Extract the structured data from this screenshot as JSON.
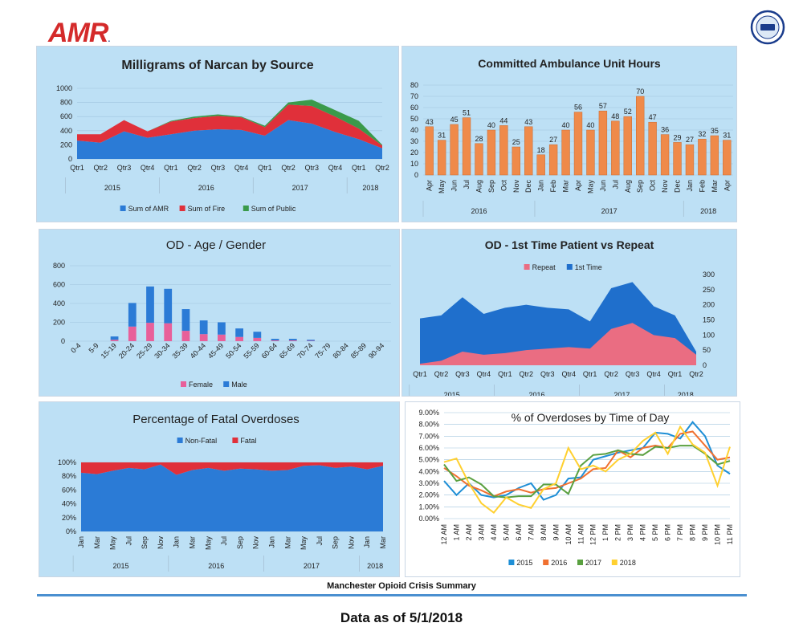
{
  "header": {
    "logo_text": "AMR",
    "logo_mark": "."
  },
  "footer": {
    "summary_title": "Manchester Opioid Crisis Summary",
    "data_as_of": "Data as of 5/1/2018"
  },
  "chart_data": [
    {
      "id": "narcan",
      "type": "area",
      "title": "Milligrams of Narcan by Source",
      "categories": [
        "Qtr1",
        "Qtr2",
        "Qtr3",
        "Qtr4",
        "Qtr1",
        "Qtr2",
        "Qtr3",
        "Qtr4",
        "Qtr1",
        "Qtr2",
        "Qtr3",
        "Qtr4",
        "Qtr1",
        "Qtr2"
      ],
      "groups": [
        {
          "label": "2015",
          "span": 4
        },
        {
          "label": "2016",
          "span": 4
        },
        {
          "label": "2017",
          "span": 4
        },
        {
          "label": "2018",
          "span": 2
        }
      ],
      "series": [
        {
          "name": "Sum of AMR",
          "values": [
            260,
            230,
            390,
            300,
            350,
            400,
            420,
            410,
            330,
            550,
            500,
            380,
            280,
            150
          ],
          "color": "#2b7bd6"
        },
        {
          "name": "Sum of Fire",
          "values": [
            90,
            120,
            160,
            90,
            180,
            180,
            190,
            180,
            120,
            220,
            250,
            220,
            150,
            40
          ],
          "color": "#e0303a"
        },
        {
          "name": "Sum of Public",
          "values": [
            0,
            0,
            0,
            0,
            10,
            20,
            20,
            10,
            20,
            30,
            90,
            90,
            110,
            10
          ],
          "color": "#3a9a4a"
        }
      ],
      "ylim": [
        0,
        1000
      ],
      "yticks": [
        0,
        200,
        400,
        600,
        800,
        1000
      ],
      "legend": "bottom"
    },
    {
      "id": "unit_hours",
      "type": "bar",
      "title": "Committed Ambulance Unit Hours",
      "categories": [
        "Apr",
        "May",
        "Jun",
        "Jul",
        "Aug",
        "Sep",
        "Oct",
        "Nov",
        "Dec",
        "Jan",
        "Feb",
        "Mar",
        "Apr",
        "May",
        "Jun",
        "Jul",
        "Aug",
        "Sep",
        "Oct",
        "Nov",
        "Dec",
        "Jan",
        "Feb",
        "Mar",
        "Apr"
      ],
      "groups": [
        {
          "label": "2016",
          "span": 9
        },
        {
          "label": "2017",
          "span": 12
        },
        {
          "label": "2018",
          "span": 4
        }
      ],
      "values": [
        43,
        31,
        45,
        51,
        28,
        40,
        44,
        25,
        43,
        18,
        27,
        40,
        56,
        40,
        57,
        48,
        52,
        70,
        47,
        36,
        29,
        27,
        32,
        35,
        31
      ],
      "ylim": [
        0,
        80
      ],
      "yticks": [
        0,
        10,
        20,
        30,
        40,
        50,
        60,
        70,
        80
      ],
      "color": "#ef8a4a"
    },
    {
      "id": "age_gender",
      "type": "bar",
      "title": "OD - Age / Gender",
      "categories": [
        "0-4",
        "5-9",
        "15-19",
        "20-24",
        "25-29",
        "30-34",
        "35-39",
        "40-44",
        "45-49",
        "50-54",
        "55-59",
        "60-64",
        "65-69",
        "70-74",
        "75-79",
        "80-84",
        "85-89",
        "90-94"
      ],
      "series": [
        {
          "name": "Female",
          "values": [
            0,
            0,
            15,
            155,
            195,
            190,
            110,
            75,
            70,
            45,
            35,
            8,
            8,
            4,
            0,
            0,
            0,
            0
          ],
          "color": "#e8609a"
        },
        {
          "name": "Male",
          "values": [
            0,
            0,
            35,
            250,
            385,
            365,
            230,
            145,
            130,
            90,
            65,
            17,
            17,
            11,
            0,
            0,
            0,
            0
          ],
          "color": "#2b7bd6"
        }
      ],
      "ylim": [
        0,
        800
      ],
      "yticks": [
        0,
        200,
        400,
        600,
        800
      ],
      "legend": "bottom"
    },
    {
      "id": "first_vs_repeat",
      "type": "area",
      "title": "OD - 1st Time Patient vs Repeat",
      "categories": [
        "Qtr1",
        "Qtr2",
        "Qtr3",
        "Qtr4",
        "Qtr1",
        "Qtr2",
        "Qtr3",
        "Qtr4",
        "Qtr1",
        "Qtr2",
        "Qtr3",
        "Qtr4",
        "Qtr1",
        "Qtr2"
      ],
      "groups": [
        {
          "label": "2015",
          "span": 4
        },
        {
          "label": "2016",
          "span": 4
        },
        {
          "label": "2017",
          "span": 4
        },
        {
          "label": "2018",
          "span": 2
        }
      ],
      "series": [
        {
          "name": "Repeat",
          "values": [
            5,
            15,
            45,
            35,
            40,
            50,
            55,
            60,
            55,
            120,
            140,
            100,
            90,
            35
          ],
          "color": "#ea6d82"
        },
        {
          "name": "1st Time",
          "values": [
            150,
            150,
            180,
            135,
            150,
            150,
            135,
            125,
            90,
            135,
            135,
            95,
            75,
            10
          ],
          "color": "#1f6fcc"
        }
      ],
      "ylim": [
        0,
        300
      ],
      "yticks": [
        0,
        50,
        100,
        150,
        200,
        250,
        300
      ],
      "legend": "top"
    },
    {
      "id": "fatal",
      "type": "area",
      "title": "Percentage of Fatal Overdoses",
      "categories": [
        "Jan",
        "Mar",
        "May",
        "Jul",
        "Sep",
        "Nov",
        "Jan",
        "Mar",
        "May",
        "Jul",
        "Sep",
        "Nov",
        "Jan",
        "Mar",
        "May",
        "Jul",
        "Sep",
        "Nov",
        "Jan",
        "Mar"
      ],
      "groups": [
        {
          "label": "2015",
          "span": 6
        },
        {
          "label": "2016",
          "span": 6
        },
        {
          "label": "2017",
          "span": 6
        },
        {
          "label": "2018",
          "span": 2
        }
      ],
      "series": [
        {
          "name": "Non-Fatal",
          "values": [
            85,
            83,
            88,
            92,
            90,
            97,
            82,
            89,
            92,
            88,
            91,
            90,
            88,
            89,
            95,
            96,
            92,
            94,
            90,
            95
          ],
          "color": "#2b7bd6"
        },
        {
          "name": "Fatal",
          "values": [
            15,
            17,
            12,
            8,
            10,
            3,
            18,
            11,
            8,
            12,
            9,
            10,
            12,
            11,
            5,
            4,
            8,
            6,
            10,
            5
          ],
          "color": "#e0303a"
        }
      ],
      "ylim": [
        0,
        100
      ],
      "yticks": [
        "0%",
        "20%",
        "40%",
        "60%",
        "80%",
        "100%"
      ],
      "legend": "top"
    },
    {
      "id": "time_of_day",
      "type": "line",
      "title": "% of Overdoses by Time of Day",
      "categories": [
        "12 AM",
        "1 AM",
        "2 AM",
        "3 AM",
        "4 AM",
        "5 AM",
        "6 AM",
        "7 AM",
        "8 AM",
        "9 AM",
        "10 AM",
        "11 AM",
        "12 PM",
        "1 PM",
        "2 PM",
        "3 PM",
        "4 PM",
        "5 PM",
        "6 PM",
        "7 PM",
        "8 PM",
        "9 PM",
        "10 PM",
        "11 PM"
      ],
      "series": [
        {
          "name": "2015",
          "values": [
            3.2,
            2.0,
            3.0,
            2.0,
            1.8,
            2.0,
            2.6,
            3.0,
            1.6,
            2.0,
            3.4,
            3.5,
            5.0,
            5.3,
            5.6,
            5.8,
            6.0,
            7.3,
            7.2,
            6.8,
            8.2,
            7.0,
            4.5,
            3.8
          ],
          "color": "#1f8fd6"
        },
        {
          "name": "2016",
          "values": [
            4.3,
            3.6,
            2.8,
            2.4,
            1.9,
            2.3,
            2.5,
            2.2,
            2.5,
            2.6,
            3.0,
            3.4,
            4.2,
            4.3,
            5.8,
            5.2,
            6.0,
            6.2,
            6.0,
            7.2,
            7.4,
            6.2,
            5.0,
            5.2
          ],
          "color": "#f07030"
        },
        {
          "name": "2017",
          "values": [
            4.6,
            3.2,
            3.5,
            2.9,
            1.9,
            1.8,
            1.9,
            1.9,
            2.9,
            2.9,
            2.1,
            4.5,
            5.4,
            5.5,
            5.8,
            5.5,
            5.4,
            6.1,
            6.0,
            6.2,
            6.2,
            5.5,
            4.6,
            4.9
          ],
          "color": "#5aa040"
        },
        {
          "name": "2018",
          "values": [
            4.8,
            5.1,
            3.0,
            1.3,
            0.5,
            1.8,
            1.2,
            0.9,
            2.5,
            3.0,
            6.0,
            4.2,
            4.5,
            4.0,
            5.0,
            5.5,
            6.6,
            7.3,
            5.5,
            7.8,
            6.3,
            5.6,
            2.8,
            6.1
          ],
          "color": "#ffd030"
        }
      ],
      "ylim": [
        0,
        9
      ],
      "yticks": [
        "0.00%",
        "1.00%",
        "2.00%",
        "3.00%",
        "4.00%",
        "5.00%",
        "6.00%",
        "7.00%",
        "8.00%",
        "9.00%"
      ],
      "legend": "bottom"
    }
  ]
}
